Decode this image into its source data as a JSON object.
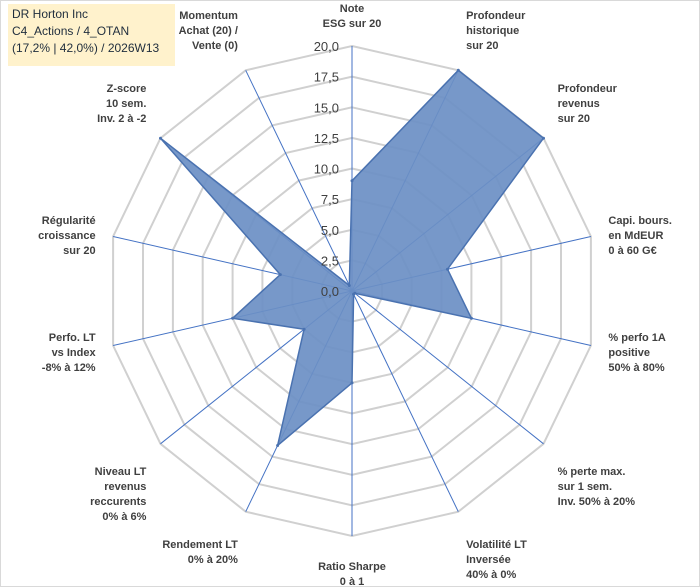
{
  "title_box": {
    "line1": "DR Horton Inc",
    "line2": "C4_Actions / 4_OTAN",
    "line3": "(17,2% | 42,0%) / 2026W13"
  },
  "colors": {
    "fill": "#6b8fc4",
    "stroke": "#4a72b0",
    "grid": "#d0d0d0",
    "spoke": "#4472c4",
    "title_bg": "#fff2cc"
  },
  "chart_data": {
    "type": "radar",
    "title": "DR Horton Inc",
    "rmin": 0,
    "rmax": 20,
    "tick_labels": [
      "0,0",
      "2,5",
      "5,0",
      "7,5",
      "10,0",
      "12,5",
      "15,0",
      "17,5",
      "20,0"
    ],
    "axes": [
      {
        "label": [
          "Note",
          "ESG sur 20"
        ],
        "value": 9.0
      },
      {
        "label": [
          "Profondeur",
          "historique",
          "sur 20"
        ],
        "value": 20.0
      },
      {
        "label": [
          "Profondeur",
          "revenus",
          "sur 20"
        ],
        "value": 20.0
      },
      {
        "label": [
          "Capi. bours.",
          "en MdEUR",
          "0 à 60 G€"
        ],
        "value": 8.0
      },
      {
        "label": [
          "% perfo 1A",
          "positive",
          "50% à 80%"
        ],
        "value": 10.0
      },
      {
        "label": [
          "% perte max.",
          "sur 1 sem.",
          "Inv. 50% à 20%"
        ],
        "value": 0.3
      },
      {
        "label": [
          "Volatilité LT",
          "Inversée",
          "40% à 0%"
        ],
        "value": 0.3
      },
      {
        "label": [
          "Ratio Sharpe",
          "0 à 1"
        ],
        "value": 7.5
      },
      {
        "label": [
          "Rendement LT",
          "0% à 20%"
        ],
        "value": 14.0
      },
      {
        "label": [
          "Niveau LT",
          "revenus",
          "reccurents",
          "0% à 6%"
        ],
        "value": 5.0
      },
      {
        "label": [
          "Perfo. LT",
          "vs Index",
          "-8% à 12%"
        ],
        "value": 10.0
      },
      {
        "label": [
          "Régularité",
          "croissance",
          "sur 20"
        ],
        "value": 6.0
      },
      {
        "label": [
          "Z-score",
          "10 sem.",
          "Inv. 2 à -2"
        ],
        "value": 20.0
      },
      {
        "label": [
          "Momentum",
          "Achat (20) /",
          "Vente (0)"
        ],
        "value": 0.5
      }
    ]
  }
}
